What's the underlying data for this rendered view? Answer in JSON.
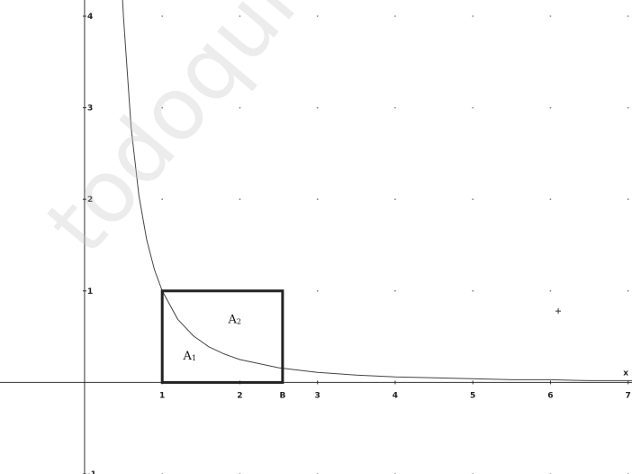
{
  "watermark": "todoquieroaprobar",
  "chart_data": {
    "type": "line",
    "title": "",
    "xlabel": "x",
    "ylabel": "",
    "xlim": [
      -0.95,
      7.05
    ],
    "ylim": [
      -1,
      4
    ],
    "x_ticks": [
      "1",
      "2",
      "3",
      "4",
      "5",
      "6",
      "7"
    ],
    "y_ticks": [
      "-1",
      "1",
      "2",
      "3",
      "4"
    ],
    "grid": "dotted",
    "series": [
      {
        "function": "1/x^2",
        "x": [
          0.48,
          0.5,
          0.6,
          0.7,
          0.8,
          0.9,
          1,
          1.2,
          1.4,
          1.6,
          1.8,
          2,
          2.5,
          3,
          3.5,
          4,
          4.5,
          5,
          5.5,
          6,
          6.5,
          7,
          7.05
        ],
        "y": [
          4.34,
          4,
          2.78,
          2.04,
          1.56,
          1.23,
          1,
          0.69,
          0.51,
          0.39,
          0.31,
          0.25,
          0.16,
          0.11,
          0.08,
          0.06,
          0.05,
          0.04,
          0.03,
          0.03,
          0.02,
          0.02,
          0.02
        ]
      }
    ],
    "rectangle": {
      "x": [
        1,
        2.55
      ],
      "y": [
        0,
        1
      ]
    },
    "rectangle_x_label": "B",
    "regions": [
      {
        "label": "A",
        "sub": "1",
        "x": 1.27,
        "y": 0.25
      },
      {
        "label": "A",
        "sub": "2",
        "x": 1.85,
        "y": 0.65
      }
    ],
    "point": {
      "x": 6.1,
      "y": 0.78
    }
  }
}
